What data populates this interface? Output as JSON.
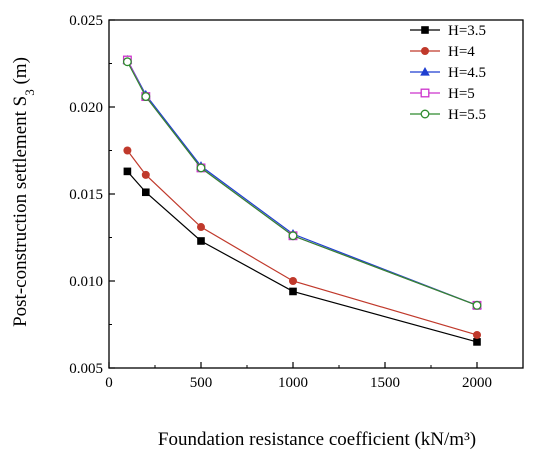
{
  "chart_data": {
    "type": "line",
    "xlabel": "Foundation resistance coefficient (kN/m³)",
    "ylabel_main": "Post-construction settlement S",
    "ylabel_sub": "3",
    "ylabel_unit": " (m)",
    "xlim": [
      0,
      2250
    ],
    "ylim": [
      0.005,
      0.025
    ],
    "xticks": [
      0,
      500,
      1000,
      1500,
      2000
    ],
    "yticks": [
      0.005,
      0.01,
      0.015,
      0.02,
      0.025
    ],
    "xtick_labels": [
      "0",
      "500",
      "1000",
      "1500",
      "2000"
    ],
    "ytick_labels": [
      "0.005",
      "0.010",
      "0.015",
      "0.020",
      "0.025"
    ],
    "grid": false,
    "legend_position": "top-right",
    "x": [
      100,
      200,
      500,
      1000,
      2000
    ],
    "series": [
      {
        "name": "H=3.5",
        "color": "#000000",
        "marker": "square-filled",
        "values": [
          0.0163,
          0.0151,
          0.0123,
          0.0094,
          0.0065
        ]
      },
      {
        "name": "H=4",
        "color": "#c0392b",
        "marker": "circle-filled",
        "values": [
          0.0175,
          0.0161,
          0.0131,
          0.01,
          0.0069
        ]
      },
      {
        "name": "H=4.5",
        "color": "#1f3fd0",
        "marker": "triangle-filled",
        "values": [
          0.0227,
          0.0207,
          0.0166,
          0.0127,
          0.0086
        ]
      },
      {
        "name": "H=5",
        "color": "#cc33cc",
        "marker": "square-open",
        "values": [
          0.0227,
          0.0206,
          0.0165,
          0.0126,
          0.0086
        ]
      },
      {
        "name": "H=5.5",
        "color": "#2e8b2e",
        "marker": "circle-open",
        "values": [
          0.0226,
          0.0206,
          0.0165,
          0.0126,
          0.0086
        ]
      }
    ]
  }
}
